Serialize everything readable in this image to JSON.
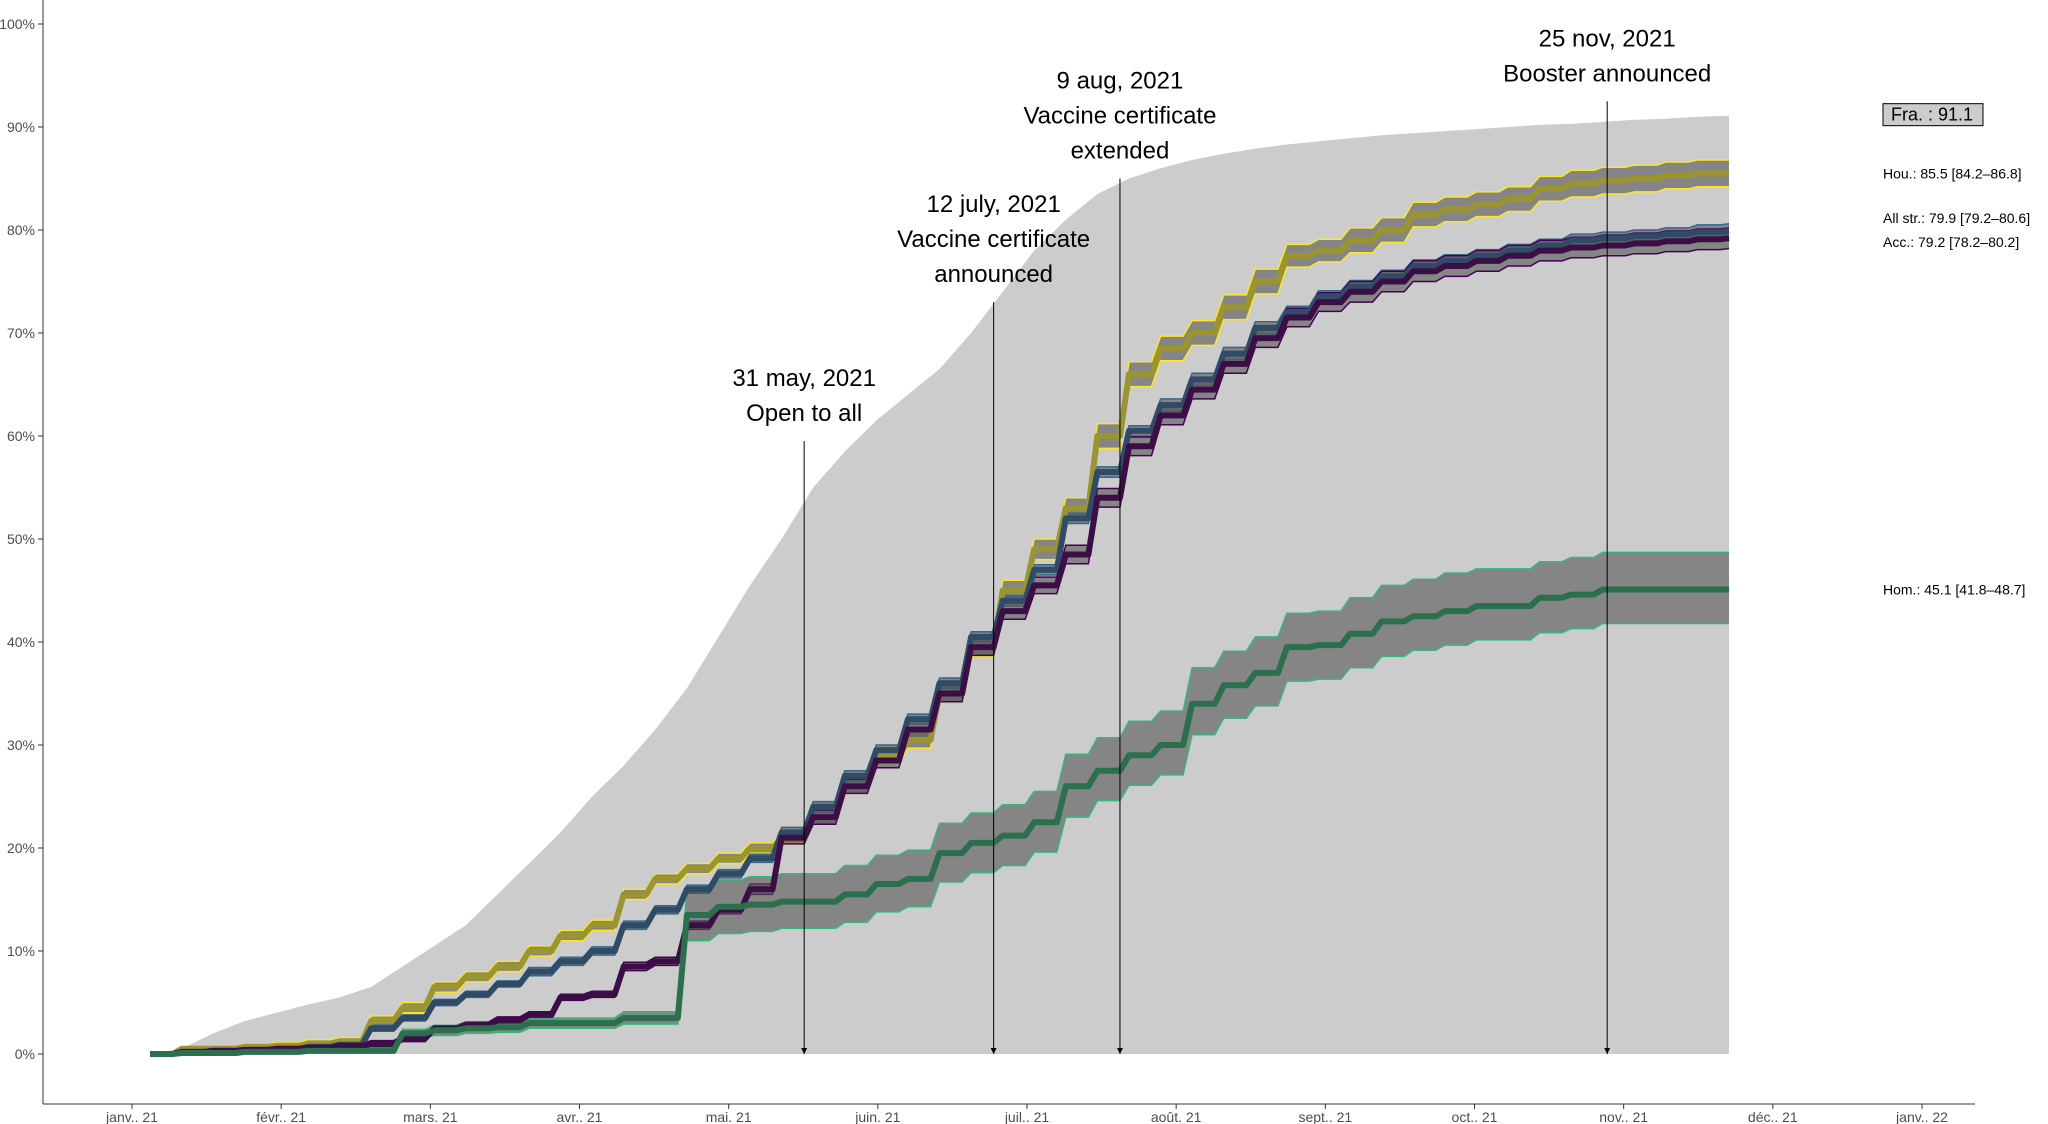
{
  "chart_data": {
    "type": "line",
    "title": "",
    "xlabel": "",
    "ylabel": "",
    "x_ticks": [
      "janv.. 21",
      "févr.. 21",
      "mars. 21",
      "avr.. 21",
      "mai. 21",
      "juin. 21",
      "juil.. 21",
      "août. 21",
      "sept.. 21",
      "oct.. 21",
      "nov.. 21",
      "déc.. 21",
      "janv.. 22"
    ],
    "y_ticks": [
      "0%",
      "10%",
      "20%",
      "30%",
      "40%",
      "50%",
      "60%",
      "70%",
      "80%",
      "90%",
      "100%"
    ],
    "ylim": [
      0,
      100
    ],
    "xlim_days": [
      -12,
      385
    ],
    "x_day_offsets": [
      6,
      13,
      20,
      27,
      34,
      41,
      48,
      55,
      62,
      69,
      76,
      83,
      90,
      97,
      104,
      111,
      118,
      125,
      132,
      139,
      146,
      153,
      160,
      167,
      174,
      181,
      188,
      195,
      202,
      209,
      216,
      223,
      230,
      237,
      244,
      251,
      258,
      265,
      272,
      279,
      286,
      293,
      300,
      307,
      314,
      321,
      328,
      335,
      342,
      349,
      356
    ],
    "national_area": {
      "name": "Fra.",
      "label": "Fra. : 91.1",
      "color": "#cccccc",
      "values": [
        0.0,
        0.5,
        2.0,
        3.2,
        4.0,
        4.8,
        5.5,
        6.5,
        8.5,
        10.5,
        12.5,
        15.5,
        18.5,
        21.5,
        25.0,
        28.0,
        31.5,
        35.5,
        40.5,
        45.5,
        50.0,
        55.0,
        58.5,
        61.5,
        64.0,
        66.5,
        70.0,
        74.0,
        78.0,
        81.0,
        83.5,
        85.0,
        86.0,
        86.8,
        87.4,
        87.9,
        88.3,
        88.6,
        88.9,
        89.2,
        89.4,
        89.6,
        89.8,
        90.0,
        90.2,
        90.3,
        90.5,
        90.7,
        90.8,
        91.0,
        91.1
      ]
    },
    "series": [
      {
        "name": "Hou.",
        "label": "Hou.: 85.5 [84.2–86.8]",
        "color": "#fde725",
        "line_color": "#9b9432",
        "values": [
          0.0,
          0.5,
          0.5,
          0.7,
          0.8,
          1.0,
          1.2,
          3.2,
          4.5,
          6.5,
          7.5,
          8.5,
          10.0,
          11.5,
          12.5,
          15.5,
          17.0,
          18.0,
          19.0,
          20.0,
          21.0,
          23.0,
          26.0,
          29.0,
          30.5,
          35.0,
          39.5,
          45.0,
          49.0,
          53.0,
          60.0,
          66.0,
          68.5,
          70.0,
          72.5,
          75.0,
          77.5,
          78.0,
          79.0,
          80.0,
          81.5,
          82.0,
          82.5,
          83.0,
          84.0,
          84.5,
          84.8,
          85.0,
          85.3,
          85.5,
          85.5
        ],
        "lower": [
          0.0,
          0.3,
          0.3,
          0.4,
          0.5,
          0.6,
          0.8,
          2.7,
          4.0,
          6.0,
          7.0,
          8.0,
          9.5,
          11.0,
          12.0,
          15.0,
          16.5,
          17.5,
          18.5,
          19.5,
          20.5,
          22.3,
          25.3,
          28.2,
          29.7,
          34.2,
          38.6,
          44.0,
          48.0,
          52.0,
          58.8,
          64.8,
          67.3,
          68.8,
          71.3,
          73.8,
          76.4,
          76.9,
          77.8,
          78.8,
          80.3,
          80.8,
          81.3,
          81.8,
          82.8,
          83.2,
          83.5,
          83.7,
          84.0,
          84.2,
          84.2
        ],
        "upper": [
          0.0,
          0.7,
          0.7,
          1.0,
          1.1,
          1.4,
          1.6,
          3.7,
          5.0,
          7.0,
          8.0,
          9.0,
          10.5,
          12.0,
          13.0,
          16.0,
          17.5,
          18.5,
          19.5,
          20.5,
          21.5,
          23.7,
          26.7,
          29.8,
          31.3,
          35.8,
          40.4,
          46.0,
          50.0,
          54.0,
          61.2,
          67.2,
          69.7,
          71.2,
          73.7,
          76.2,
          78.6,
          79.1,
          80.2,
          81.2,
          82.7,
          83.2,
          83.7,
          84.2,
          85.2,
          85.8,
          86.1,
          86.3,
          86.6,
          86.8,
          86.8
        ]
      },
      {
        "name": "All str.",
        "label": "All str.: 79.9 [79.2–80.6]",
        "color": "#31688e",
        "line_color": "#2f4b66",
        "values": [
          0.0,
          0.2,
          0.3,
          0.4,
          0.5,
          0.7,
          0.9,
          2.5,
          3.5,
          5.0,
          5.8,
          6.8,
          8.0,
          9.0,
          10.0,
          12.5,
          14.0,
          16.0,
          17.5,
          19.0,
          21.5,
          24.0,
          27.0,
          29.5,
          32.5,
          36.0,
          40.5,
          44.0,
          47.0,
          52.0,
          56.5,
          60.5,
          63.0,
          65.5,
          68.0,
          70.5,
          72.0,
          73.5,
          74.5,
          75.5,
          76.5,
          77.0,
          77.5,
          78.0,
          78.5,
          79.0,
          79.2,
          79.4,
          79.6,
          79.8,
          79.9
        ],
        "lower": [
          0.0,
          0.1,
          0.2,
          0.3,
          0.4,
          0.5,
          0.7,
          2.2,
          3.2,
          4.7,
          5.5,
          6.5,
          7.6,
          8.6,
          9.6,
          12.1,
          13.6,
          15.6,
          17.1,
          18.6,
          21.0,
          23.5,
          26.5,
          29.0,
          32.0,
          35.5,
          40.0,
          43.5,
          46.5,
          51.5,
          56.0,
          60.0,
          62.4,
          64.9,
          67.4,
          69.9,
          71.4,
          72.9,
          73.9,
          74.9,
          75.9,
          76.4,
          76.9,
          77.4,
          77.9,
          78.4,
          78.6,
          78.8,
          79.0,
          79.1,
          79.2
        ],
        "upper": [
          0.0,
          0.3,
          0.4,
          0.5,
          0.6,
          0.9,
          1.1,
          2.8,
          3.8,
          5.3,
          6.1,
          7.1,
          8.4,
          9.4,
          10.4,
          12.9,
          14.4,
          16.4,
          17.9,
          19.4,
          22.0,
          24.5,
          27.5,
          30.0,
          33.0,
          36.5,
          41.0,
          44.5,
          47.5,
          52.5,
          57.0,
          61.0,
          63.6,
          66.1,
          68.6,
          71.1,
          72.6,
          74.1,
          75.1,
          76.1,
          77.1,
          77.6,
          78.1,
          78.6,
          79.1,
          79.6,
          79.8,
          80.0,
          80.2,
          80.5,
          80.6
        ]
      },
      {
        "name": "Acc.",
        "label": "Acc.: 79.2 [78.2–80.2]",
        "color": "#440154",
        "line_color": "#3b0f46",
        "values": [
          0.0,
          0.2,
          0.3,
          0.4,
          0.5,
          0.6,
          0.8,
          1.0,
          1.5,
          2.5,
          2.8,
          3.3,
          3.8,
          5.5,
          5.8,
          8.5,
          9.0,
          12.5,
          14.0,
          16.0,
          21.0,
          23.0,
          26.0,
          28.5,
          31.5,
          35.0,
          39.5,
          43.0,
          45.5,
          48.5,
          54.0,
          59.0,
          62.0,
          64.5,
          67.0,
          69.5,
          71.5,
          73.0,
          74.0,
          75.0,
          76.0,
          76.5,
          77.0,
          77.5,
          78.0,
          78.3,
          78.5,
          78.7,
          78.9,
          79.1,
          79.2
        ],
        "lower": [
          0.0,
          0.1,
          0.2,
          0.3,
          0.4,
          0.5,
          0.6,
          0.7,
          1.2,
          2.2,
          2.5,
          3.0,
          3.5,
          5.2,
          5.5,
          8.1,
          8.6,
          12.1,
          13.6,
          15.5,
          20.4,
          22.3,
          25.3,
          27.8,
          30.7,
          34.2,
          38.7,
          42.2,
          44.7,
          47.6,
          53.1,
          58.1,
          61.1,
          63.6,
          66.1,
          68.6,
          70.6,
          72.1,
          73.0,
          74.0,
          75.0,
          75.5,
          76.0,
          76.5,
          77.0,
          77.3,
          77.5,
          77.7,
          77.9,
          78.1,
          78.2
        ],
        "upper": [
          0.0,
          0.3,
          0.4,
          0.5,
          0.6,
          0.7,
          1.0,
          1.3,
          1.8,
          2.8,
          3.1,
          3.6,
          4.1,
          5.8,
          6.1,
          8.9,
          9.4,
          12.9,
          14.4,
          16.5,
          21.6,
          23.7,
          26.7,
          29.2,
          32.3,
          35.8,
          40.3,
          43.8,
          46.3,
          49.4,
          54.9,
          59.9,
          62.9,
          65.4,
          67.9,
          70.4,
          72.4,
          73.9,
          75.0,
          76.0,
          77.0,
          77.5,
          78.0,
          78.5,
          79.0,
          79.3,
          79.5,
          79.7,
          79.9,
          80.1,
          80.2
        ]
      },
      {
        "name": "Hom.",
        "label": "Hom.: 45.1 [41.8–48.7]",
        "color": "#35b779",
        "line_color": "#2b6f4f",
        "values": [
          0.0,
          0.1,
          0.1,
          0.2,
          0.2,
          0.3,
          0.3,
          0.3,
          2.0,
          2.3,
          2.5,
          2.6,
          3.0,
          3.0,
          3.0,
          3.5,
          3.5,
          13.5,
          14.3,
          14.5,
          14.8,
          14.8,
          15.5,
          16.5,
          17.0,
          19.5,
          20.5,
          21.2,
          22.5,
          26.0,
          27.5,
          29.0,
          30.0,
          34.0,
          35.8,
          37.0,
          39.5,
          39.7,
          40.8,
          42.0,
          42.5,
          43.0,
          43.5,
          43.5,
          44.3,
          44.6,
          45.1,
          45.1,
          45.1,
          45.1,
          45.1
        ],
        "lower": [
          0.0,
          0.0,
          0.0,
          0.1,
          0.1,
          0.2,
          0.2,
          0.2,
          1.6,
          1.8,
          2.0,
          2.1,
          2.5,
          2.5,
          2.5,
          2.9,
          2.9,
          11.0,
          11.7,
          11.9,
          12.2,
          12.2,
          12.8,
          13.8,
          14.3,
          16.7,
          17.6,
          18.3,
          19.6,
          23.0,
          24.6,
          26.1,
          27.1,
          31.0,
          32.6,
          33.8,
          36.2,
          36.4,
          37.5,
          38.6,
          39.2,
          39.7,
          40.2,
          40.2,
          40.9,
          41.3,
          41.8,
          41.8,
          41.8,
          41.8,
          41.8
        ],
        "upper": [
          0.0,
          0.2,
          0.2,
          0.3,
          0.3,
          0.4,
          0.4,
          0.4,
          2.4,
          2.8,
          3.0,
          3.1,
          3.5,
          3.5,
          3.5,
          4.1,
          4.1,
          16.0,
          16.9,
          17.2,
          17.5,
          17.5,
          18.3,
          19.3,
          19.8,
          22.4,
          23.4,
          24.2,
          25.5,
          29.1,
          30.7,
          32.3,
          33.3,
          37.5,
          39.1,
          40.5,
          42.8,
          43.0,
          44.3,
          45.5,
          46.1,
          46.7,
          47.1,
          47.1,
          47.8,
          48.2,
          48.7,
          48.7,
          48.7,
          48.7,
          48.7
        ]
      }
    ],
    "annotations": [
      {
        "day": 151,
        "line_top_pct": 59.5,
        "lines": [
          "31 may, 2021",
          "Open to all"
        ]
      },
      {
        "day": 193,
        "line_top_pct": 73.0,
        "lines": [
          "12 july, 2021",
          "Vaccine certificate",
          "announced"
        ]
      },
      {
        "day": 221,
        "line_top_pct": 85.0,
        "lines": [
          "9 aug, 2021",
          "Vaccine certificate",
          "extended"
        ]
      },
      {
        "day": 329,
        "line_top_pct": 92.5,
        "lines": [
          "25 nov, 2021",
          "Booster announced"
        ]
      }
    ]
  }
}
